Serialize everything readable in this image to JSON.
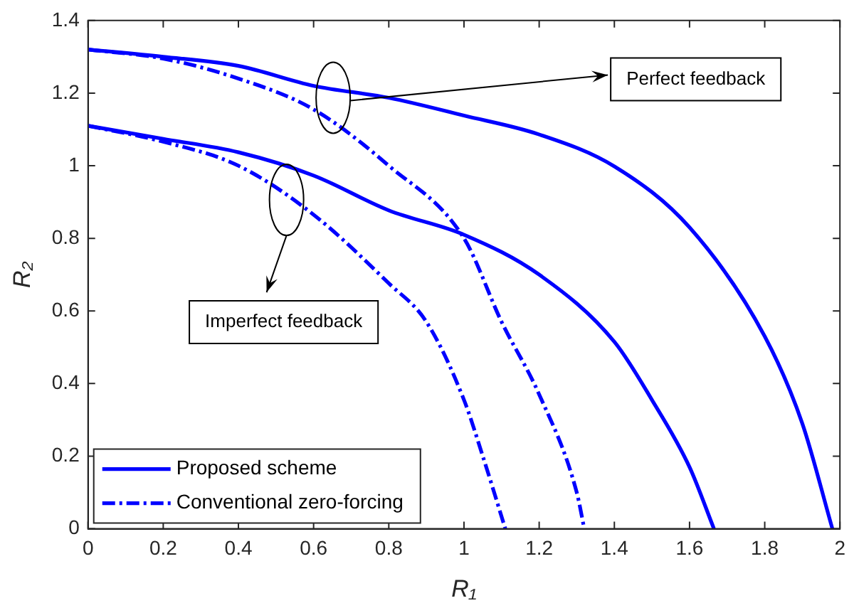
{
  "chart_data": {
    "type": "line",
    "xlabel": "R₁",
    "ylabel": "R₂",
    "xlim": [
      0,
      2
    ],
    "ylim": [
      0,
      1.4
    ],
    "xticks": [
      0,
      0.2,
      0.4,
      0.6,
      0.8,
      1,
      1.2,
      1.4,
      1.6,
      1.8,
      2
    ],
    "yticks": [
      0,
      0.2,
      0.4,
      0.6,
      0.8,
      1,
      1.2,
      1.4
    ],
    "grid": false,
    "legend": "bottom left",
    "marker": "none",
    "series": [
      {
        "name": "Proposed scheme",
        "color": "#0000ff",
        "line_style": "solid",
        "x": [
          0,
          0.2,
          0.4,
          0.6,
          0.8,
          1,
          1.2,
          1.4,
          1.6,
          1.8,
          1.9,
          1.98
        ],
        "values": [
          1.32,
          1.3,
          1.275,
          1.22,
          1.187,
          1.138,
          1.086,
          0.998,
          0.83,
          0.53,
          0.29,
          0
        ]
      },
      {
        "name": "Conventional zero-forcing",
        "color": "#0000ff",
        "line_style": "dashed",
        "x": [
          0,
          0.2,
          0.4,
          0.6,
          0.8,
          1,
          1.1,
          1.2,
          1.3,
          1.32
        ],
        "values": [
          1.32,
          1.295,
          1.24,
          1.155,
          1,
          0.8,
          0.57,
          0.37,
          0.1,
          0
        ]
      },
      {
        "color": "#0000ff",
        "line_style": "solid",
        "x": [
          0,
          0.2,
          0.4,
          0.6,
          0.8,
          1,
          1.2,
          1.4,
          1.5,
          1.6,
          1.665
        ],
        "values": [
          1.11,
          1.074,
          1.037,
          0.973,
          0.877,
          0.81,
          0.7,
          0.515,
          0.355,
          0.17,
          0
        ]
      },
      {
        "color": "#0000ff",
        "line_style": "dashed",
        "x": [
          0,
          0.2,
          0.4,
          0.6,
          0.8,
          0.9,
          1,
          1.05,
          1.11
        ],
        "values": [
          1.11,
          1.066,
          1,
          0.865,
          0.676,
          0.57,
          0.355,
          0.2,
          0
        ]
      }
    ],
    "annotations": [
      "Perfect feedback",
      "Imperfect feedback"
    ]
  }
}
